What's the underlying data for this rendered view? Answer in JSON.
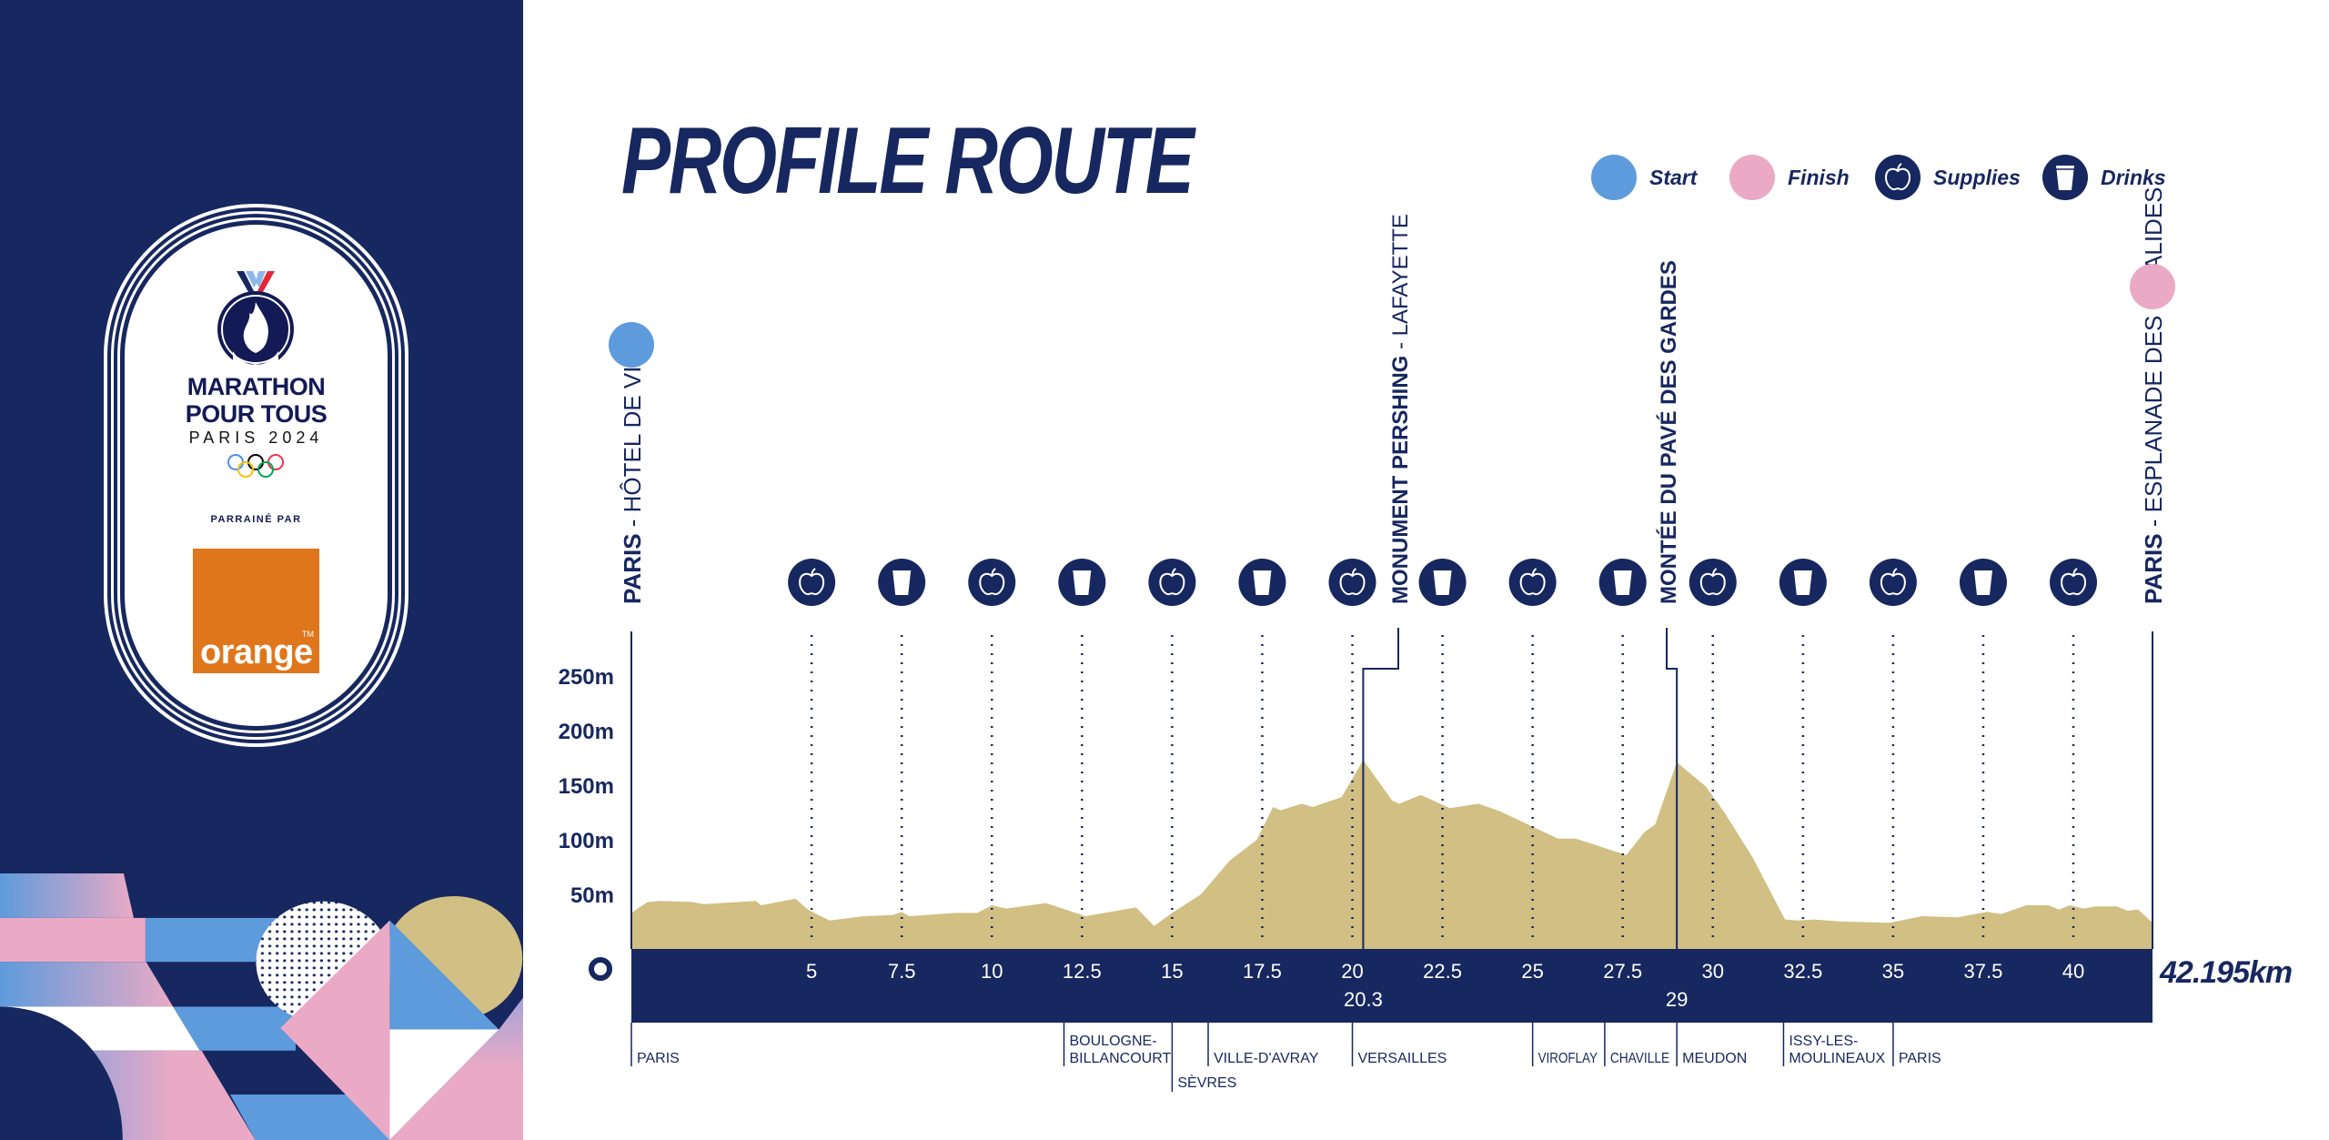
{
  "sidebar": {
    "logo_line1": "MARATHON",
    "logo_line2": "POUR TOUS",
    "logo_line3": "PARIS 2024",
    "sponsor_label": "PARRAINÉ PAR",
    "sponsor_name": "orange",
    "sponsor_tm": "TM"
  },
  "header": {
    "title": "PROFILE ROUTE"
  },
  "legend": [
    {
      "label": "Start",
      "icon": "start-dot"
    },
    {
      "label": "Finish",
      "icon": "finish-dot"
    },
    {
      "label": "Supplies",
      "icon": "apple-icon"
    },
    {
      "label": "Drinks",
      "icon": "cup-icon"
    }
  ],
  "colors": {
    "navy": "#17275f",
    "start": "#5e9bdc",
    "finish": "#eaaac6",
    "terrain": "#d1bf83",
    "sponsor": "#e0761c",
    "olympic_rings": [
      "#4a8fe0",
      "#f4c300",
      "#000000",
      "#00a651",
      "#ee334e"
    ]
  },
  "chart_data": {
    "type": "area",
    "xlim": [
      0,
      42.195
    ],
    "ylim": [
      0,
      250
    ],
    "grid": false,
    "y_ticks": [
      {
        "value": 50,
        "label": "50m"
      },
      {
        "value": 100,
        "label": "100m"
      },
      {
        "value": 150,
        "label": "150m"
      },
      {
        "value": 200,
        "label": "200m"
      },
      {
        "value": 250,
        "label": "250m"
      }
    ],
    "x_zero_label": "0",
    "x_ticks": [
      {
        "value": 5,
        "label": "5"
      },
      {
        "value": 7.5,
        "label": "7.5"
      },
      {
        "value": 10,
        "label": "10"
      },
      {
        "value": 12.5,
        "label": "12.5"
      },
      {
        "value": 15,
        "label": "15"
      },
      {
        "value": 17.5,
        "label": "17.5"
      },
      {
        "value": 20,
        "label": "20"
      },
      {
        "value": 22.5,
        "label": "22.5"
      },
      {
        "value": 25,
        "label": "25"
      },
      {
        "value": 27.5,
        "label": "27.5"
      },
      {
        "value": 30,
        "label": "30"
      },
      {
        "value": 32.5,
        "label": "32.5"
      },
      {
        "value": 35,
        "label": "35"
      },
      {
        "value": 37.5,
        "label": "37.5"
      },
      {
        "value": 40,
        "label": "40"
      }
    ],
    "x_extra_ticks": [
      {
        "value": 20.3,
        "label": "20.3"
      },
      {
        "value": 29,
        "label": "29"
      }
    ],
    "x_end_label": "42.195km",
    "profile": [
      [
        0,
        33
      ],
      [
        0.45,
        43
      ],
      [
        0.8,
        44
      ],
      [
        1.7,
        43
      ],
      [
        2.0,
        41
      ],
      [
        3.45,
        44
      ],
      [
        3.6,
        40
      ],
      [
        4.55,
        46
      ],
      [
        4.9,
        36
      ],
      [
        5.5,
        26
      ],
      [
        6.45,
        30
      ],
      [
        7.25,
        31
      ],
      [
        7.5,
        34
      ],
      [
        7.7,
        30
      ],
      [
        9.0,
        33
      ],
      [
        9.6,
        33
      ],
      [
        10.0,
        40
      ],
      [
        10.4,
        37
      ],
      [
        11.5,
        42
      ],
      [
        12.6,
        30
      ],
      [
        14.0,
        38
      ],
      [
        14.5,
        21
      ],
      [
        15.0,
        33
      ],
      [
        15.8,
        50
      ],
      [
        16.6,
        81
      ],
      [
        17.35,
        100
      ],
      [
        17.8,
        130
      ],
      [
        18.0,
        127
      ],
      [
        18.6,
        133
      ],
      [
        18.9,
        130
      ],
      [
        19.7,
        139
      ],
      [
        20.3,
        173
      ],
      [
        21.1,
        136
      ],
      [
        21.3,
        133
      ],
      [
        21.9,
        141
      ],
      [
        22.7,
        129
      ],
      [
        23.5,
        133
      ],
      [
        24.1,
        126
      ],
      [
        25.7,
        101
      ],
      [
        26.2,
        101
      ],
      [
        27.6,
        86
      ],
      [
        28.1,
        107
      ],
      [
        28.4,
        114
      ],
      [
        29.0,
        171
      ],
      [
        29.8,
        149
      ],
      [
        30.3,
        126
      ],
      [
        31.1,
        84
      ],
      [
        32.0,
        27
      ],
      [
        32.35,
        26
      ],
      [
        32.8,
        27
      ],
      [
        33.6,
        25
      ],
      [
        34.9,
        24
      ],
      [
        35.8,
        30
      ],
      [
        36.8,
        29
      ],
      [
        37.6,
        34
      ],
      [
        38.0,
        32
      ],
      [
        38.7,
        40
      ],
      [
        39.3,
        40
      ],
      [
        39.6,
        36
      ],
      [
        39.9,
        40
      ],
      [
        40.3,
        37
      ],
      [
        40.6,
        39
      ],
      [
        41.2,
        39
      ],
      [
        41.5,
        35
      ],
      [
        41.8,
        36
      ],
      [
        42.195,
        24
      ]
    ],
    "stations": [
      {
        "km": 5,
        "type": "supplies"
      },
      {
        "km": 7.5,
        "type": "drinks"
      },
      {
        "km": 10,
        "type": "supplies"
      },
      {
        "km": 12.5,
        "type": "drinks"
      },
      {
        "km": 15,
        "type": "supplies"
      },
      {
        "km": 17.5,
        "type": "drinks"
      },
      {
        "km": 20,
        "type": "supplies"
      },
      {
        "km": 22.5,
        "type": "drinks"
      },
      {
        "km": 25,
        "type": "supplies"
      },
      {
        "km": 27.5,
        "type": "drinks"
      },
      {
        "km": 30,
        "type": "supplies"
      },
      {
        "km": 32.5,
        "type": "drinks"
      },
      {
        "km": 35,
        "type": "supplies"
      },
      {
        "km": 37.5,
        "type": "drinks"
      },
      {
        "km": 40,
        "type": "supplies"
      }
    ],
    "towns": [
      {
        "km": 0,
        "lines": [
          "PARIS"
        ]
      },
      {
        "km": 12.0,
        "lines": [
          "BOULOGNE-",
          "BILLANCOURT"
        ]
      },
      {
        "km": 15.0,
        "lines": [
          "SÈVRES"
        ],
        "low": true
      },
      {
        "km": 16.0,
        "lines": [
          "VILLE-D'AVRAY"
        ]
      },
      {
        "km": 20.0,
        "lines": [
          "VERSAILLES"
        ]
      },
      {
        "km": 25.0,
        "lines": [
          "VIROFLAY"
        ]
      },
      {
        "km": 27.0,
        "lines": [
          "CHAVILLE"
        ]
      },
      {
        "km": 29.0,
        "lines": [
          "MEUDON"
        ]
      },
      {
        "km": 31.96,
        "lines": [
          "ISSY-LES-",
          "MOULINEAUX"
        ]
      },
      {
        "km": 35.0,
        "lines": [
          "PARIS"
        ]
      }
    ],
    "landmarks": {
      "start": {
        "km": 0,
        "bold": "PARIS",
        "rest": " - HÔTEL DE VILLE"
      },
      "finish": {
        "km": 42.195,
        "bold": "PARIS",
        "rest": " - ESPLANADE DES INVALIDES"
      },
      "pershing": {
        "km": 20.3,
        "bold": "MONUMENT PERSHING",
        "rest": " - LAFAYETTE"
      },
      "pave": {
        "km": 29,
        "bold": "MONTÉE DU PAVÉ DES GARDES",
        "rest": ""
      }
    }
  }
}
